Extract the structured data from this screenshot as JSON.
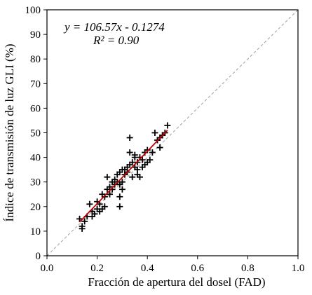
{
  "chart_data": {
    "type": "scatter",
    "xlabel": "Fracción de apertura del dosel (FAD)",
    "ylabel": "Índice de transmisión de luz GLI (%)",
    "xlim": [
      0,
      1
    ],
    "ylim": [
      0,
      100
    ],
    "x_ticks": [
      0,
      0.2,
      0.4,
      0.6,
      0.8,
      1
    ],
    "x_tick_labels": [
      "0.0",
      "0.2",
      "0.4",
      "0.6",
      "0.8",
      "1.0"
    ],
    "y_ticks": [
      0,
      10,
      20,
      30,
      40,
      50,
      60,
      70,
      80,
      90,
      100
    ],
    "y_tick_labels": [
      "0",
      "10",
      "20",
      "30",
      "40",
      "50",
      "60",
      "70",
      "80",
      "90",
      "100"
    ],
    "grid": false,
    "marker": "plus",
    "series": [
      {
        "points": [
          [
            0.13,
            15
          ],
          [
            0.14,
            12
          ],
          [
            0.14,
            11
          ],
          [
            0.15,
            14
          ],
          [
            0.16,
            16
          ],
          [
            0.17,
            21
          ],
          [
            0.18,
            16
          ],
          [
            0.18,
            18
          ],
          [
            0.19,
            17
          ],
          [
            0.2,
            19
          ],
          [
            0.2,
            22
          ],
          [
            0.21,
            21
          ],
          [
            0.21,
            18
          ],
          [
            0.22,
            19
          ],
          [
            0.22,
            25
          ],
          [
            0.23,
            20
          ],
          [
            0.23,
            24
          ],
          [
            0.24,
            32
          ],
          [
            0.24,
            27
          ],
          [
            0.25,
            25
          ],
          [
            0.25,
            28
          ],
          [
            0.26,
            30
          ],
          [
            0.26,
            27
          ],
          [
            0.27,
            29
          ],
          [
            0.27,
            31
          ],
          [
            0.28,
            33
          ],
          [
            0.28,
            30
          ],
          [
            0.29,
            29
          ],
          [
            0.29,
            34
          ],
          [
            0.29,
            24
          ],
          [
            0.29,
            20
          ],
          [
            0.3,
            35
          ],
          [
            0.3,
            27
          ],
          [
            0.3,
            30
          ],
          [
            0.31,
            33
          ],
          [
            0.31,
            35
          ],
          [
            0.32,
            34
          ],
          [
            0.32,
            36
          ],
          [
            0.33,
            37
          ],
          [
            0.33,
            42
          ],
          [
            0.33,
            48
          ],
          [
            0.34,
            32
          ],
          [
            0.34,
            38
          ],
          [
            0.35,
            36
          ],
          [
            0.35,
            40
          ],
          [
            0.35,
            41
          ],
          [
            0.36,
            33
          ],
          [
            0.36,
            35
          ],
          [
            0.36,
            38
          ],
          [
            0.37,
            40
          ],
          [
            0.37,
            32
          ],
          [
            0.38,
            39
          ],
          [
            0.38,
            36
          ],
          [
            0.39,
            37
          ],
          [
            0.39,
            42
          ],
          [
            0.4,
            38
          ],
          [
            0.4,
            43
          ],
          [
            0.41,
            39
          ],
          [
            0.42,
            42
          ],
          [
            0.43,
            50
          ],
          [
            0.44,
            47
          ],
          [
            0.45,
            48
          ],
          [
            0.45,
            44
          ],
          [
            0.46,
            49
          ],
          [
            0.47,
            50
          ],
          [
            0.48,
            53
          ]
        ]
      }
    ],
    "fit_line": {
      "slope": 106.57,
      "intercept": -0.1274,
      "x_range": [
        0.13,
        0.48
      ],
      "color": "#c00000"
    },
    "reference_line": {
      "x": [
        0,
        1
      ],
      "y": [
        0,
        100
      ],
      "color": "#a0a0a0",
      "style": "dashed"
    },
    "annotations": [
      "y = 106.57x - 0.1274",
      "R² = 0.90"
    ]
  }
}
